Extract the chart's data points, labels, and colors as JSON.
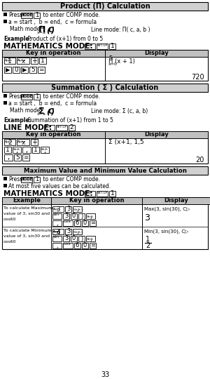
{
  "page_number": "33",
  "bg_color": "#ffffff",
  "section1_title": "Product (Π) Calculation",
  "section2_title": "Summation ( Σ ) Calculation",
  "section3_title": "Maximum Value and Minimum Value Calculation",
  "header_bg": "#d0d0d0",
  "table_header_bg": "#b8b8b8",
  "key_bg": "#f0f0f0",
  "border_color": "#000000",
  "text_color": "#000000"
}
